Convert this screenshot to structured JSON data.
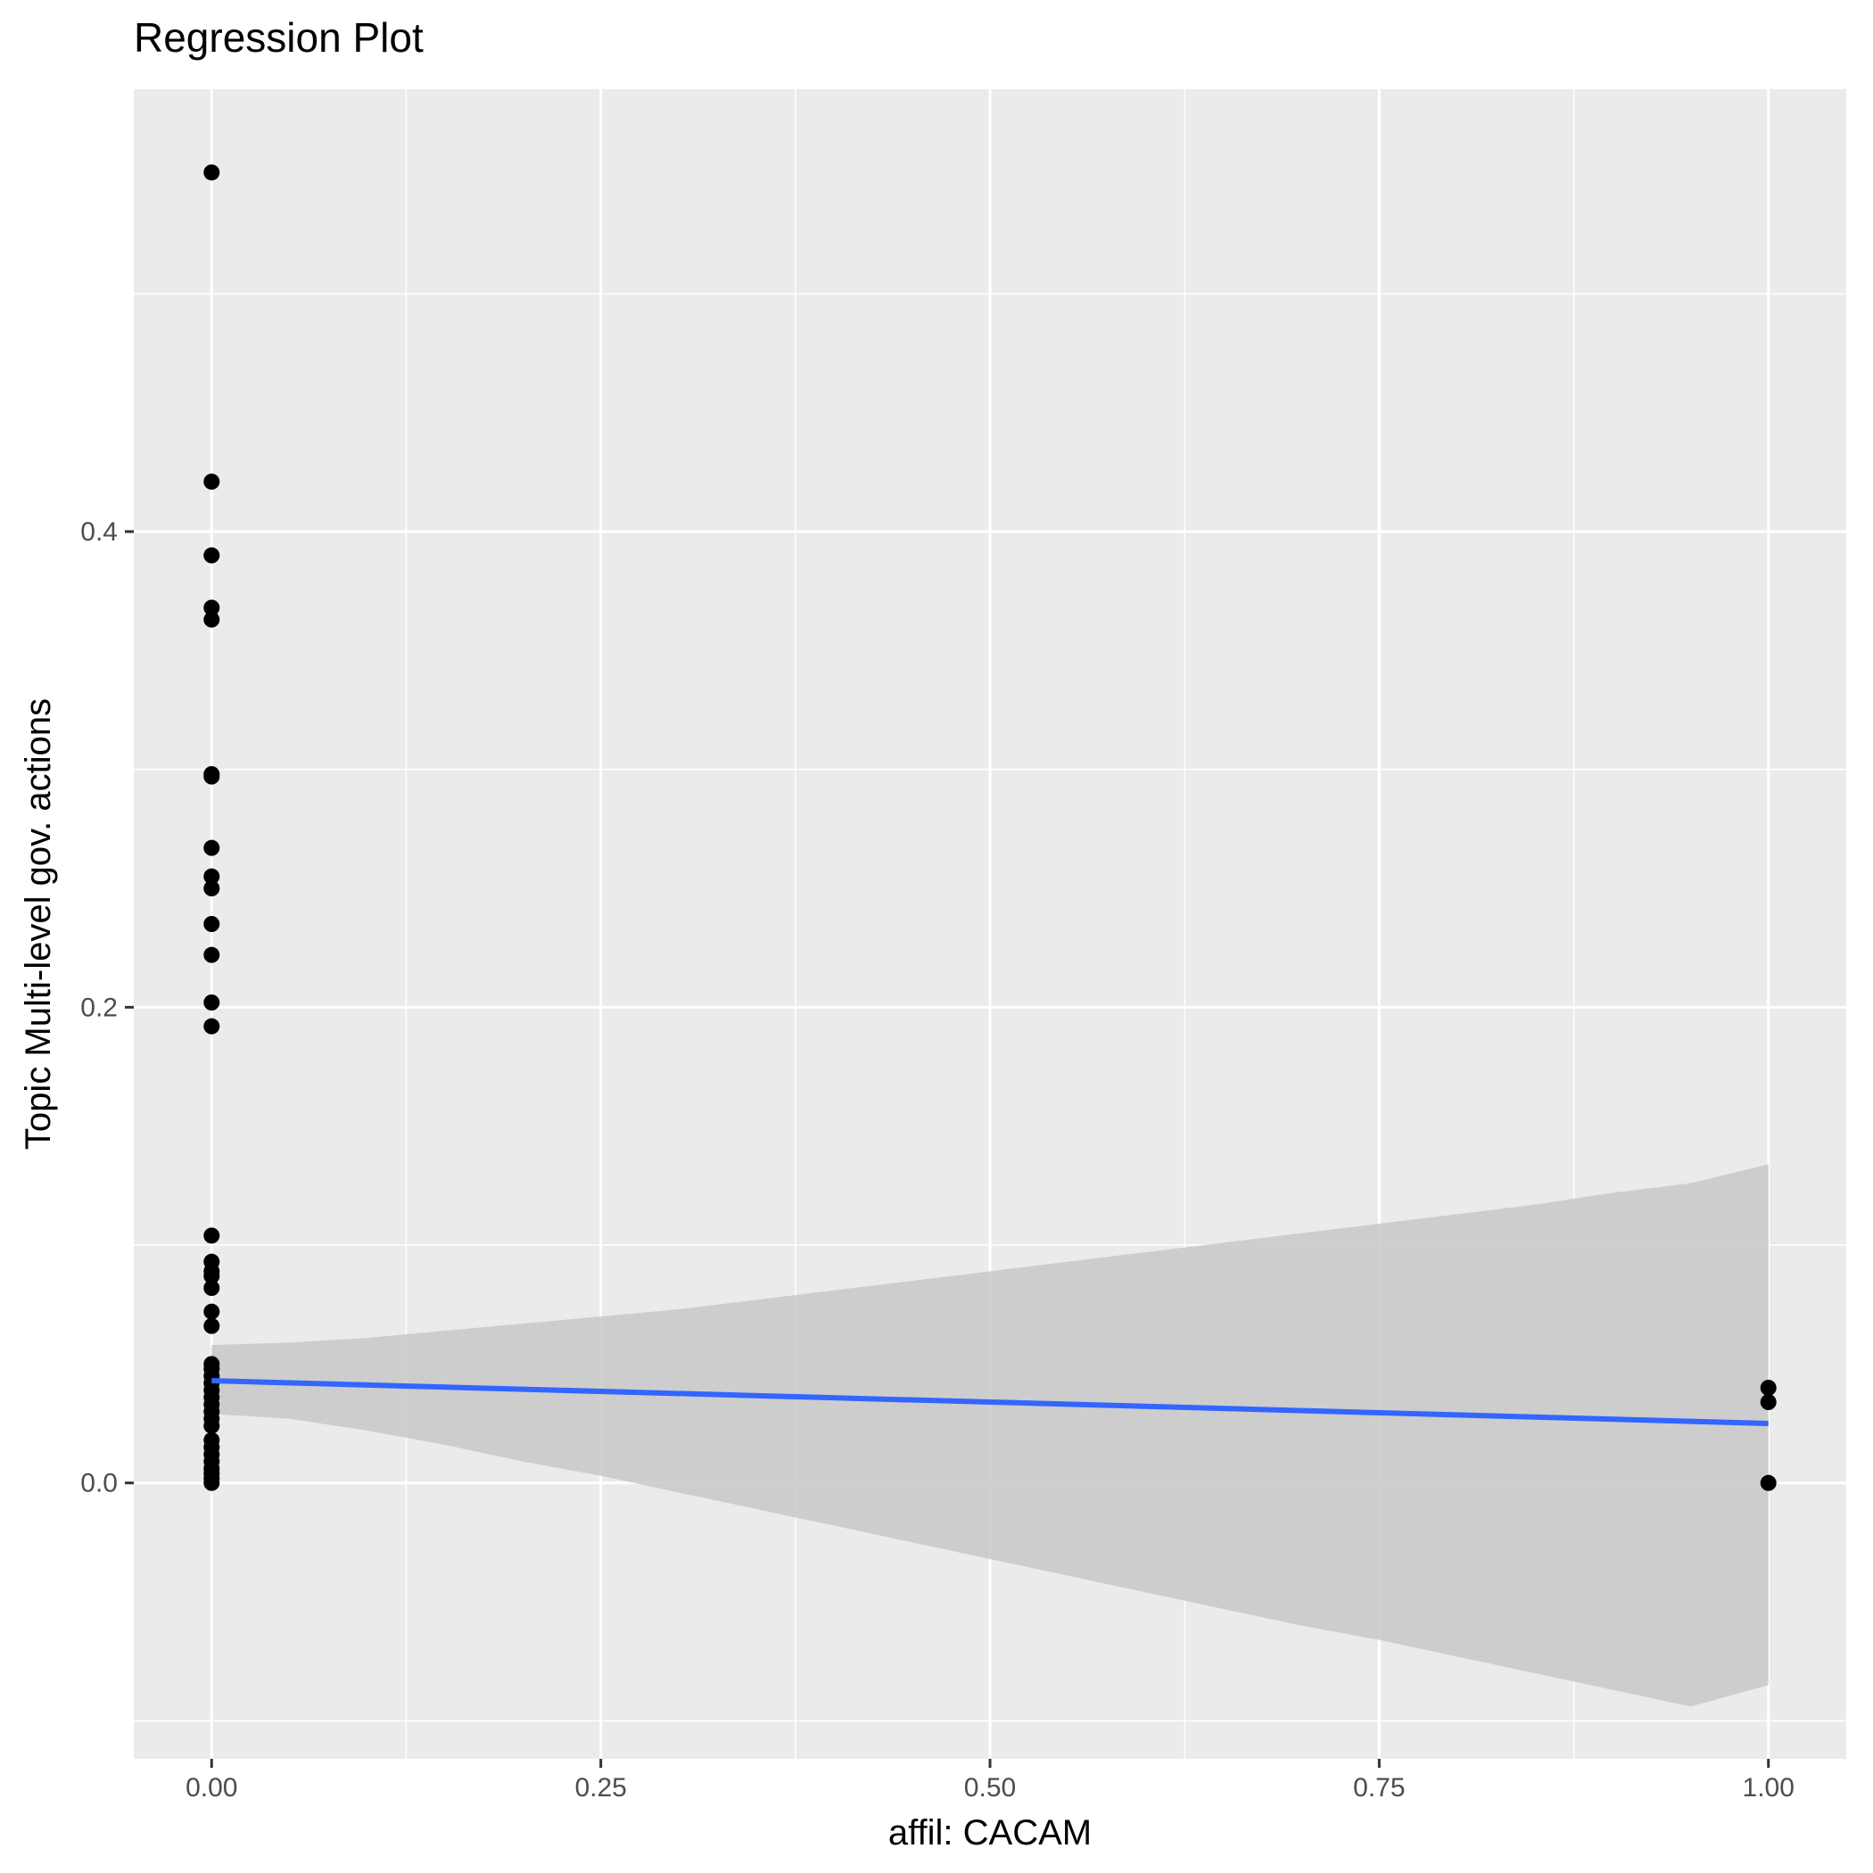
{
  "chart_data": {
    "type": "scatter",
    "title": "Regression Plot",
    "xlabel": "affil: CACAM",
    "ylabel": "Topic Multi-level gov. actions",
    "xlim": [
      -0.05,
      1.05
    ],
    "ylim": [
      -0.116,
      0.586
    ],
    "x_ticks": [
      0,
      0.25,
      0.5,
      0.75,
      1
    ],
    "x_tick_labels": [
      "0.00",
      "0.25",
      "0.50",
      "0.75",
      "1.00"
    ],
    "y_ticks": [
      0,
      0.2,
      0.4
    ],
    "y_tick_labels": [
      "0.0",
      "0.2",
      "0.4"
    ],
    "grid": true,
    "point_color": "#000000",
    "points": [
      {
        "x": 0,
        "y": 0.551
      },
      {
        "x": 0,
        "y": 0.421
      },
      {
        "x": 0,
        "y": 0.39
      },
      {
        "x": 0,
        "y": 0.368
      },
      {
        "x": 0,
        "y": 0.363
      },
      {
        "x": 0,
        "y": 0.298
      },
      {
        "x": 0,
        "y": 0.297
      },
      {
        "x": 0,
        "y": 0.267
      },
      {
        "x": 0,
        "y": 0.255
      },
      {
        "x": 0,
        "y": 0.25
      },
      {
        "x": 0,
        "y": 0.235
      },
      {
        "x": 0,
        "y": 0.222
      },
      {
        "x": 0,
        "y": 0.202
      },
      {
        "x": 0,
        "y": 0.192
      },
      {
        "x": 0,
        "y": 0.104
      },
      {
        "x": 0,
        "y": 0.093
      },
      {
        "x": 0,
        "y": 0.089
      },
      {
        "x": 0,
        "y": 0.087
      },
      {
        "x": 0,
        "y": 0.082
      },
      {
        "x": 0,
        "y": 0.072
      },
      {
        "x": 0,
        "y": 0.066
      },
      {
        "x": 0,
        "y": 0.05
      },
      {
        "x": 0,
        "y": 0.048
      },
      {
        "x": 0,
        "y": 0.045
      },
      {
        "x": 0,
        "y": 0.042
      },
      {
        "x": 0,
        "y": 0.039
      },
      {
        "x": 0,
        "y": 0.036
      },
      {
        "x": 0,
        "y": 0.033
      },
      {
        "x": 0,
        "y": 0.03
      },
      {
        "x": 0,
        "y": 0.027
      },
      {
        "x": 0,
        "y": 0.024
      },
      {
        "x": 0,
        "y": 0.018
      },
      {
        "x": 0,
        "y": 0.015
      },
      {
        "x": 0,
        "y": 0.012
      },
      {
        "x": 0,
        "y": 0.009
      },
      {
        "x": 0,
        "y": 0.006
      },
      {
        "x": 0,
        "y": 0.004
      },
      {
        "x": 0,
        "y": 0.002
      },
      {
        "x": 0,
        "y": 0.0
      },
      {
        "x": 1,
        "y": 0.04
      },
      {
        "x": 1,
        "y": 0.034
      },
      {
        "x": 1,
        "y": 0.0
      }
    ],
    "regression": {
      "color": "#3366ff",
      "x": [
        0,
        1
      ],
      "y": [
        0.043,
        0.025
      ]
    },
    "confidence_band": {
      "color": "#c8c8c8",
      "x": [
        0,
        0.05,
        0.1,
        0.15,
        0.2,
        0.25,
        0.3,
        0.35,
        0.4,
        0.45,
        0.5,
        0.55,
        0.6,
        0.65,
        0.7,
        0.75,
        0.8,
        0.85,
        0.9,
        0.95,
        1
      ],
      "upper": [
        0.058,
        0.059,
        0.061,
        0.064,
        0.067,
        0.07,
        0.073,
        0.077,
        0.081,
        0.085,
        0.089,
        0.093,
        0.097,
        0.101,
        0.105,
        0.109,
        0.113,
        0.117,
        0.122,
        0.126,
        0.134
      ],
      "lower": [
        0.029,
        0.027,
        0.022,
        0.016,
        0.009,
        0.003,
        -0.004,
        -0.011,
        -0.018,
        -0.025,
        -0.032,
        -0.039,
        -0.046,
        -0.053,
        -0.06,
        -0.066,
        -0.073,
        -0.08,
        -0.087,
        -0.094,
        -0.085
      ]
    }
  }
}
